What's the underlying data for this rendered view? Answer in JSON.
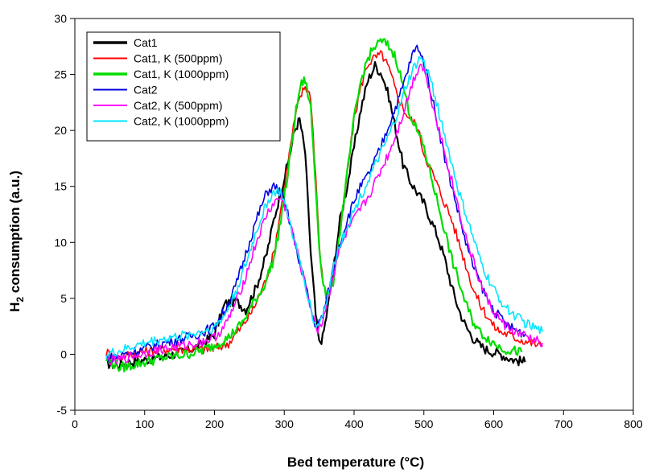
{
  "chart_data": {
    "type": "line",
    "title": "",
    "xlabel": "Bed temperature (°C)",
    "ylabel_main": "H",
    "ylabel_sub": "2",
    "ylabel_rest": " consumption (a.u.)",
    "xlim": [
      0,
      800
    ],
    "ylim": [
      -5,
      30
    ],
    "xticks": [
      0,
      100,
      200,
      300,
      400,
      500,
      600,
      700,
      800
    ],
    "yticks": [
      -5,
      0,
      5,
      10,
      15,
      20,
      25,
      30
    ],
    "grid": false,
    "legend_position": "top-left",
    "series": [
      {
        "name": "Cat1",
        "color": "#000000",
        "x": [
          45,
          60,
          80,
          100,
          120,
          140,
          160,
          180,
          200,
          215,
          230,
          245,
          260,
          275,
          285,
          295,
          305,
          315,
          322,
          330,
          338,
          345,
          350,
          355,
          362,
          370,
          380,
          390,
          400,
          410,
          420,
          430,
          440,
          450,
          460,
          470,
          480,
          490,
          500,
          510,
          520,
          530,
          540,
          550,
          560,
          570,
          580,
          590,
          600,
          610,
          620,
          630,
          645
        ],
        "y": [
          -0.8,
          -1.0,
          -0.7,
          -0.5,
          -0.3,
          0,
          0.3,
          0.8,
          1.8,
          4.5,
          4.8,
          4.0,
          6.0,
          9.0,
          12.0,
          14.5,
          17.0,
          20.0,
          21.0,
          18.0,
          9.0,
          3.5,
          1.0,
          1.5,
          4.0,
          7.5,
          12.0,
          15.0,
          18.5,
          22.0,
          24.5,
          25.8,
          25.0,
          23.0,
          20.0,
          17.0,
          15.5,
          14.5,
          13.5,
          12.0,
          10.5,
          8.5,
          6.0,
          4.0,
          2.5,
          1.5,
          0.8,
          0.4,
          0.2,
          0,
          -0.3,
          -0.5,
          -0.7
        ]
      },
      {
        "name": "Cat1, K (500ppm)",
        "color": "#ff0000",
        "x": [
          45,
          60,
          80,
          100,
          120,
          140,
          160,
          180,
          200,
          220,
          240,
          255,
          270,
          285,
          295,
          305,
          315,
          323,
          330,
          338,
          345,
          352,
          360,
          370,
          380,
          390,
          400,
          410,
          420,
          430,
          440,
          450,
          460,
          470,
          480,
          490,
          500,
          510,
          520,
          530,
          540,
          550,
          560,
          570,
          580,
          590,
          600,
          610,
          620,
          630,
          640,
          650,
          660,
          670
        ],
        "y": [
          0.2,
          -0.3,
          0,
          0.2,
          0.4,
          0.5,
          0.5,
          0.4,
          0.5,
          1.0,
          2.5,
          4.0,
          6.0,
          9.0,
          13.0,
          17.0,
          21.0,
          23.0,
          24.0,
          23.0,
          16.0,
          8.0,
          5.0,
          7.0,
          11.0,
          16.0,
          21.0,
          24.0,
          26.0,
          26.5,
          26.8,
          25.5,
          23.5,
          22.0,
          21.0,
          20.5,
          18.0,
          16.5,
          15.0,
          13.5,
          12.0,
          10.0,
          8.0,
          6.0,
          4.5,
          3.5,
          2.5,
          2.0,
          1.8,
          1.5,
          1.3,
          1.1,
          0.9,
          0.7
        ]
      },
      {
        "name": "Cat1, K (1000ppm)",
        "color": "#00dd00",
        "x": [
          45,
          65,
          80,
          100,
          120,
          140,
          160,
          180,
          200,
          220,
          240,
          255,
          270,
          285,
          295,
          305,
          315,
          323,
          330,
          338,
          345,
          352,
          360,
          370,
          380,
          390,
          400,
          410,
          420,
          430,
          440,
          450,
          460,
          470,
          480,
          490,
          500,
          510,
          520,
          530,
          540,
          550,
          560,
          570,
          580,
          590,
          600,
          610,
          620,
          630,
          640
        ],
        "y": [
          -0.5,
          -1.2,
          -1.0,
          -0.7,
          -0.4,
          -0.2,
          0,
          0.3,
          0.8,
          1.5,
          2.8,
          4.5,
          6.0,
          8.5,
          12.0,
          16.0,
          21.0,
          24.0,
          24.5,
          22.0,
          15.0,
          8.0,
          5.0,
          6.5,
          11.0,
          16.0,
          21.0,
          24.5,
          26.5,
          27.5,
          28.0,
          27.5,
          26.5,
          24.0,
          21.5,
          20.0,
          18.5,
          16.0,
          13.5,
          11.0,
          8.5,
          6.5,
          4.5,
          3.0,
          2.0,
          1.5,
          1.0,
          0.6,
          0.4,
          0.3,
          0.2
        ]
      },
      {
        "name": "Cat2",
        "color": "#0000dd",
        "x": [
          45,
          60,
          80,
          100,
          120,
          140,
          160,
          180,
          200,
          215,
          230,
          245,
          260,
          275,
          285,
          295,
          305,
          315,
          325,
          335,
          342,
          348,
          355,
          365,
          375,
          390,
          405,
          420,
          435,
          450,
          465,
          475,
          485,
          492,
          500,
          510,
          520,
          530,
          540,
          550,
          560,
          570,
          580,
          590,
          600,
          610,
          620,
          630,
          645
        ],
        "y": [
          -0.3,
          -0.2,
          0.2,
          0.5,
          0.9,
          1.2,
          1.5,
          1.9,
          2.5,
          4.0,
          6.0,
          9.0,
          12.0,
          14.5,
          15.0,
          14.5,
          12.5,
          10.0,
          7.5,
          5.0,
          3.0,
          2.5,
          3.5,
          6.0,
          9.0,
          12.0,
          14.5,
          16.0,
          18.0,
          20.5,
          23.0,
          25.0,
          27.0,
          27.5,
          26.0,
          23.5,
          20.5,
          17.5,
          15.0,
          12.5,
          10.0,
          8.0,
          6.5,
          5.0,
          4.0,
          3.2,
          2.6,
          2.2,
          1.8
        ]
      },
      {
        "name": "Cat2, K (500ppm)",
        "color": "#ff00ff",
        "x": [
          45,
          60,
          80,
          100,
          120,
          140,
          160,
          180,
          200,
          215,
          230,
          245,
          260,
          275,
          285,
          295,
          305,
          315,
          325,
          335,
          342,
          348,
          355,
          365,
          375,
          390,
          405,
          420,
          435,
          450,
          465,
          475,
          485,
          495,
          500,
          510,
          520,
          530,
          540,
          550,
          560,
          570,
          580,
          590,
          600,
          610,
          620,
          630,
          645,
          660,
          670
        ],
        "y": [
          -0.5,
          -0.6,
          -0.2,
          0.1,
          0.4,
          0.6,
          0.8,
          1.1,
          1.5,
          2.5,
          4.5,
          7.0,
          10.0,
          12.5,
          13.5,
          14.0,
          12.5,
          10.0,
          7.5,
          5.0,
          3.0,
          2.2,
          3.0,
          5.5,
          8.5,
          11.0,
          12.5,
          14.0,
          16.0,
          18.0,
          20.5,
          22.5,
          24.5,
          26.0,
          25.5,
          23.0,
          20.5,
          18.0,
          15.5,
          13.0,
          10.5,
          8.5,
          6.5,
          5.0,
          3.8,
          3.0,
          2.4,
          2.0,
          1.6,
          1.2,
          1.0
        ]
      },
      {
        "name": "Cat2, K (1000ppm)",
        "color": "#00e5ff",
        "x": [
          45,
          60,
          80,
          100,
          120,
          140,
          160,
          180,
          200,
          215,
          230,
          245,
          260,
          275,
          285,
          295,
          305,
          315,
          325,
          335,
          342,
          348,
          355,
          365,
          375,
          390,
          405,
          420,
          435,
          450,
          465,
          475,
          485,
          495,
          500,
          510,
          520,
          530,
          540,
          550,
          560,
          570,
          580,
          590,
          600,
          610,
          620,
          630,
          645,
          660,
          670
        ],
        "y": [
          0,
          0.2,
          0.6,
          1.0,
          1.3,
          1.5,
          1.7,
          2.0,
          2.4,
          3.5,
          5.5,
          8.0,
          11.0,
          13.5,
          14.5,
          14.5,
          12.5,
          10.0,
          7.5,
          5.0,
          3.0,
          2.5,
          3.5,
          6.0,
          9.0,
          11.5,
          13.5,
          15.5,
          17.5,
          19.5,
          22.0,
          24.0,
          25.5,
          26.5,
          26.0,
          24.5,
          22.0,
          19.5,
          17.0,
          14.5,
          12.5,
          10.5,
          8.5,
          7.0,
          5.8,
          4.8,
          4.0,
          3.5,
          2.8,
          2.3,
          2.0
        ]
      }
    ]
  }
}
